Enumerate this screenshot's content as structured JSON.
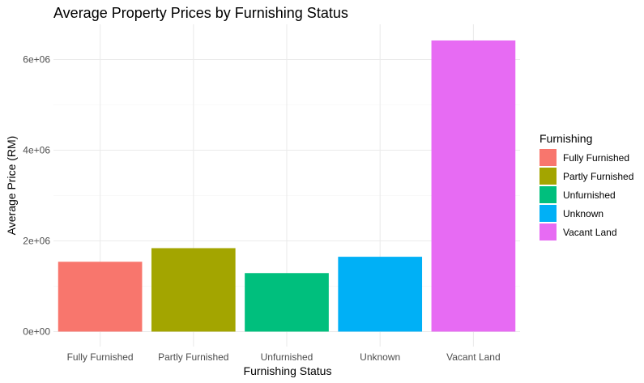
{
  "chart_data": {
    "type": "bar",
    "title": "Average Property Prices by Furnishing Status",
    "xlabel": "Furnishing Status",
    "ylabel": "Average Price (RM)",
    "categories": [
      "Fully Furnished",
      "Partly Furnished",
      "Unfurnished",
      "Unknown",
      "Vacant Land"
    ],
    "values": [
      1540000,
      1840000,
      1290000,
      1650000,
      6420000
    ],
    "colors": [
      "#F8766D",
      "#A3A500",
      "#00BF7D",
      "#00B0F6",
      "#E76BF3"
    ],
    "ylim": [
      0,
      6700000
    ],
    "yticks": [
      0,
      2000000,
      4000000,
      6000000
    ],
    "ytick_labels": [
      "0e+00",
      "2e+06",
      "4e+06",
      "6e+06"
    ],
    "grid": true,
    "legend": {
      "title": "Furnishing",
      "position": "right",
      "entries": [
        "Fully Furnished",
        "Partly Furnished",
        "Unfurnished",
        "Unknown",
        "Vacant Land"
      ]
    }
  }
}
